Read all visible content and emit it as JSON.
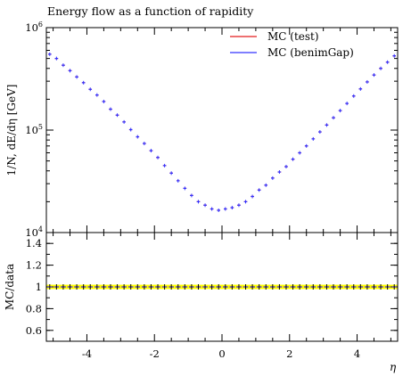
{
  "chart_data": [
    {
      "type": "line",
      "title": "Energy flow as a function of rapidity",
      "xlabel": "η",
      "ylabel": "1/N, dE/dη [GeV]",
      "xlim": [
        -5.2,
        5.2
      ],
      "ylim": [
        10000,
        1000000
      ],
      "yscale": "log",
      "grid": false,
      "legend_position": "top-right",
      "x_edges": [
        -5.2,
        -5.0,
        -4.8,
        -4.6,
        -4.4,
        -4.2,
        -4.0,
        -3.8,
        -3.6,
        -3.4,
        -3.2,
        -3.0,
        -2.8,
        -2.6,
        -2.4,
        -2.2,
        -2.0,
        -1.8,
        -1.6,
        -1.4,
        -1.2,
        -1.0,
        -0.8,
        -0.6,
        -0.4,
        -0.2,
        0.0,
        0.2,
        0.4,
        0.6,
        0.8,
        1.0,
        1.2,
        1.4,
        1.6,
        1.8,
        2.0,
        2.2,
        2.4,
        2.6,
        2.8,
        3.0,
        3.2,
        3.4,
        3.6,
        3.8,
        4.0,
        4.2,
        4.4,
        4.6,
        4.8,
        5.0,
        5.2
      ],
      "series": [
        {
          "name": "MC (test)",
          "color": "#e41a1c",
          "values": [
            550000,
            500000,
            430000,
            380000,
            330000,
            290000,
            250000,
            220000,
            190000,
            160000,
            140000,
            120000,
            101000,
            86000,
            74000,
            63000,
            54000,
            45000,
            38000,
            32000,
            27000,
            23000,
            20000,
            18500,
            17000,
            16500,
            17000,
            17500,
            18500,
            20000,
            22500,
            26000,
            29000,
            34000,
            39000,
            44000,
            52000,
            60000,
            70000,
            82000,
            96000,
            112000,
            132000,
            155000,
            182000,
            215000,
            252000,
            295000,
            345000,
            400000,
            460000,
            530000
          ]
        },
        {
          "name": "MC (benimGap)",
          "color": "#3333ff",
          "values": [
            550000,
            500000,
            430000,
            380000,
            330000,
            290000,
            250000,
            220000,
            190000,
            160000,
            140000,
            120000,
            101000,
            86000,
            74000,
            63000,
            54000,
            45000,
            38000,
            32000,
            27000,
            23000,
            20000,
            18500,
            17000,
            16500,
            17000,
            17500,
            18500,
            20000,
            22500,
            26000,
            29000,
            34000,
            39000,
            44000,
            52000,
            60000,
            70000,
            82000,
            96000,
            112000,
            132000,
            155000,
            182000,
            215000,
            252000,
            295000,
            345000,
            400000,
            460000,
            530000
          ]
        }
      ],
      "y_ticks": [
        {
          "value": 10000,
          "base": "10",
          "exp": "4"
        },
        {
          "value": 100000,
          "base": "10",
          "exp": "5"
        },
        {
          "value": 1000000,
          "base": "10",
          "exp": "6"
        }
      ]
    },
    {
      "type": "line",
      "ylabel": "MC/data",
      "xlabel": "η",
      "xlim": [
        -5.2,
        5.2
      ],
      "ylim": [
        0.5,
        1.5
      ],
      "band": {
        "low": 0.98,
        "high": 1.02,
        "color": "#ffff00"
      },
      "ratio_value": 1.0,
      "x_ticks": [
        "-4",
        "-2",
        "0",
        "2",
        "4"
      ],
      "x_tick_values": [
        -4,
        -2,
        0,
        2,
        4
      ],
      "y_ticks": [
        "0.6",
        "0.8",
        "1",
        "1.2",
        "1.4"
      ],
      "y_tick_values": [
        0.6,
        0.8,
        1.0,
        1.2,
        1.4
      ]
    }
  ]
}
